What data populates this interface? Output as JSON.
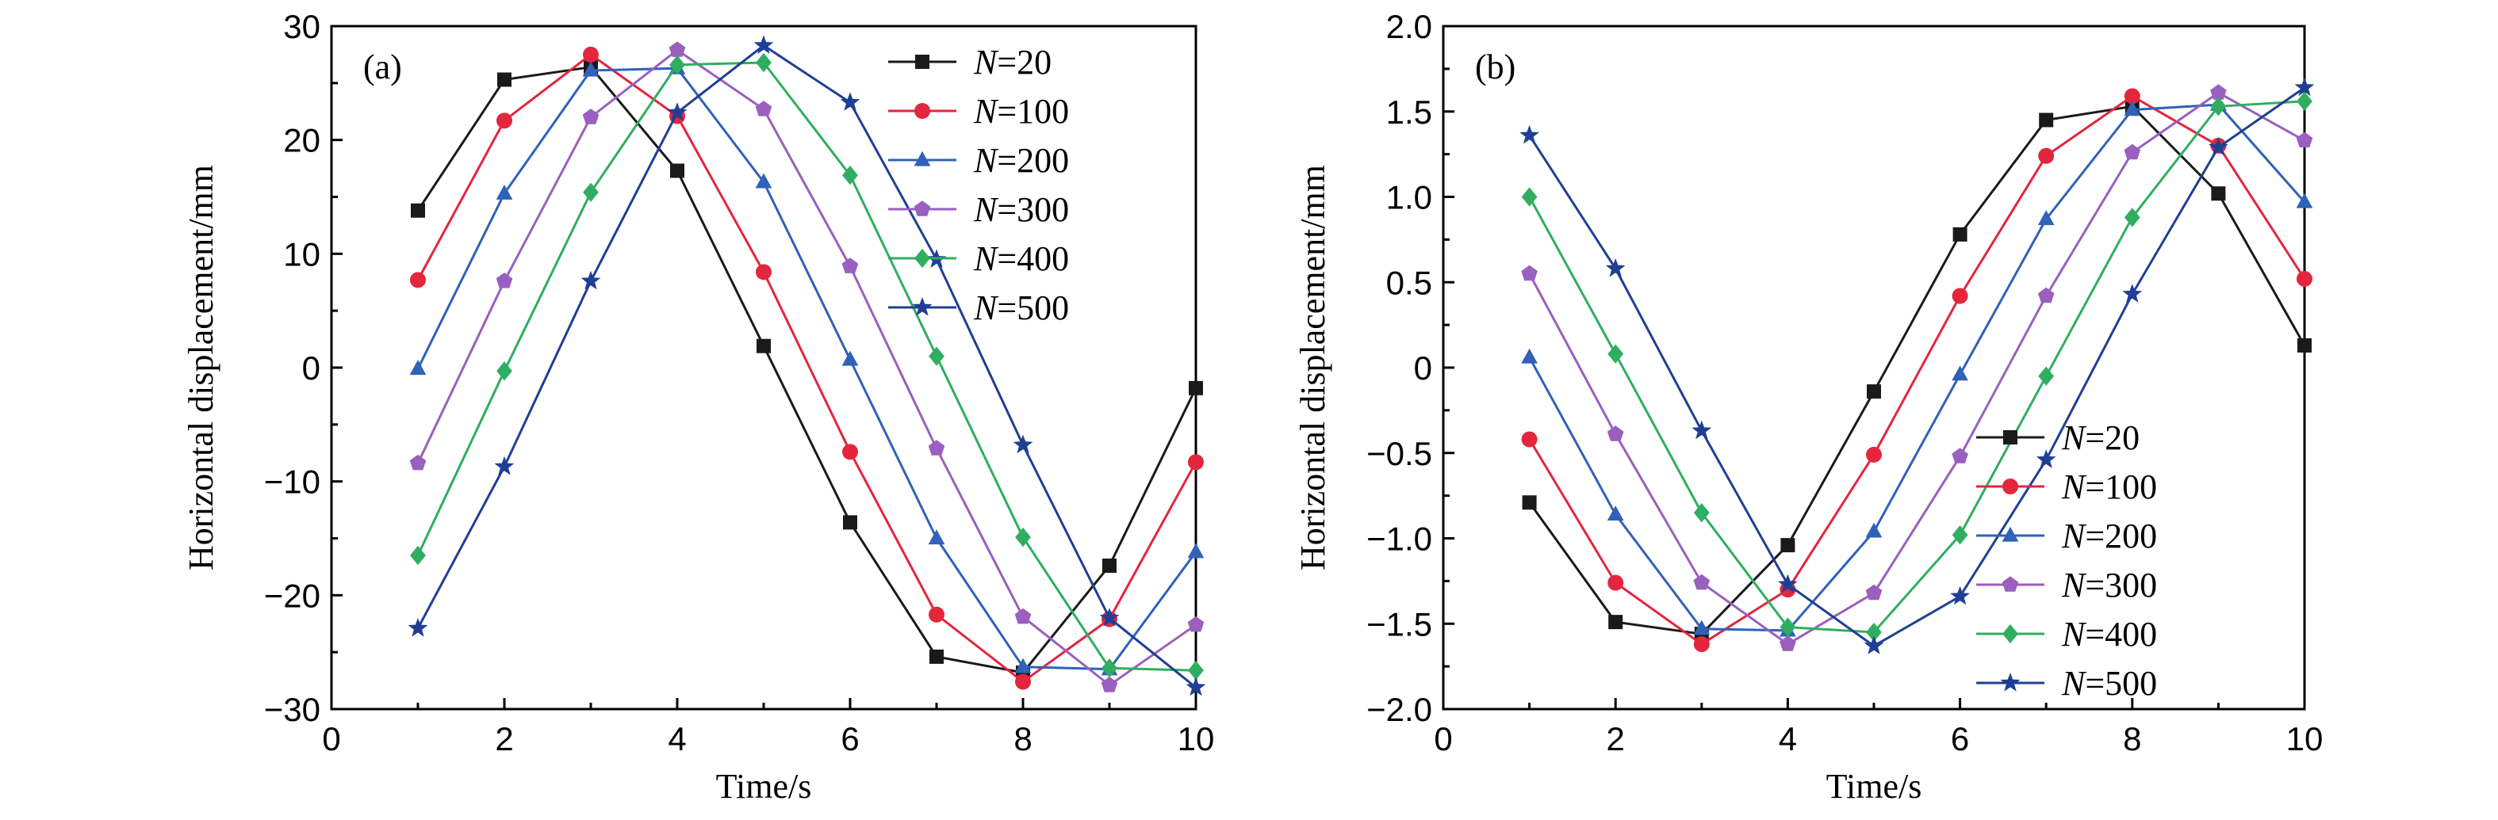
{
  "colors": {
    "N=20": "#1a1a1a",
    "N=100": "#e3263d",
    "N=200": "#2f62b8",
    "N=300": "#9a5fbf",
    "N=400": "#2fae60",
    "N=500": "#1f3f94"
  },
  "chart_data": [
    {
      "type": "line",
      "panel_label": "(a)",
      "xlabel": "Time/s",
      "ylabel": "Horizontal displacement/mm",
      "xlim": [
        0,
        10
      ],
      "ylim": [
        -30,
        30
      ],
      "xticks": [
        0,
        2,
        4,
        6,
        8,
        10
      ],
      "yticks": [
        -30,
        -20,
        -10,
        0,
        10,
        20,
        30
      ],
      "ytick_labels": [
        "−30",
        "−20",
        "−10",
        "0",
        "10",
        "20",
        "30"
      ],
      "legend_position": "top-right",
      "x": [
        1,
        2,
        3,
        4,
        5,
        6,
        7,
        8,
        9,
        10
      ],
      "series": [
        {
          "name": "N=20",
          "var": "N",
          "value": "20",
          "marker": "square",
          "values": [
            13.8,
            25.3,
            26.4,
            17.3,
            1.9,
            -13.6,
            -25.4,
            -26.8,
            -17.4,
            -1.8
          ]
        },
        {
          "name": "N=100",
          "var": "N",
          "value": "100",
          "marker": "circle",
          "values": [
            7.7,
            21.7,
            27.5,
            22.1,
            8.4,
            -7.4,
            -21.7,
            -27.6,
            -22.1,
            -8.3
          ]
        },
        {
          "name": "N=200",
          "var": "N",
          "value": "200",
          "marker": "triangle",
          "values": [
            -0.1,
            15.3,
            26.1,
            26.3,
            16.3,
            0.7,
            -15.0,
            -26.3,
            -26.5,
            -16.2
          ]
        },
        {
          "name": "N=300",
          "var": "N",
          "value": "300",
          "marker": "pentagon",
          "values": [
            -8.4,
            7.6,
            22.0,
            27.9,
            22.7,
            8.9,
            -7.1,
            -21.9,
            -27.9,
            -22.6
          ]
        },
        {
          "name": "N=400",
          "var": "N",
          "value": "400",
          "marker": "diamond",
          "values": [
            -16.5,
            -0.3,
            15.4,
            26.6,
            26.8,
            16.9,
            1.0,
            -14.9,
            -26.4,
            -26.6
          ]
        },
        {
          "name": "N=500",
          "var": "N",
          "value": "500",
          "marker": "star",
          "values": [
            -22.9,
            -8.7,
            7.6,
            22.4,
            28.3,
            23.3,
            9.5,
            -6.8,
            -22.0,
            -28.1
          ]
        }
      ]
    },
    {
      "type": "line",
      "panel_label": "(b)",
      "xlabel": "Time/s",
      "ylabel": "Horizontal displacement/mm",
      "xlim": [
        0,
        10
      ],
      "ylim": [
        -2.0,
        2.0
      ],
      "xticks": [
        0,
        2,
        4,
        6,
        8,
        10
      ],
      "yticks": [
        -2.0,
        -1.5,
        -1.0,
        -0.5,
        0,
        0.5,
        1.0,
        1.5,
        2.0
      ],
      "ytick_labels": [
        "−2.0",
        "−1.5",
        "−1.0",
        "−0.5",
        "0",
        "0.5",
        "1.0",
        "1.5",
        "2.0"
      ],
      "legend_position": "bottom-right",
      "x": [
        1,
        2,
        3,
        4,
        5,
        6,
        7,
        8,
        9,
        10
      ],
      "series": [
        {
          "name": "N=20",
          "var": "N",
          "value": "20",
          "marker": "square",
          "values": [
            -0.79,
            -1.49,
            -1.56,
            -1.04,
            -0.14,
            0.78,
            1.45,
            1.53,
            1.02,
            0.13
          ]
        },
        {
          "name": "N=100",
          "var": "N",
          "value": "100",
          "marker": "circle",
          "values": [
            -0.42,
            -1.26,
            -1.62,
            -1.3,
            -0.51,
            0.42,
            1.24,
            1.59,
            1.3,
            0.52
          ]
        },
        {
          "name": "N=200",
          "var": "N",
          "value": "200",
          "marker": "triangle",
          "values": [
            0.06,
            -0.86,
            -1.53,
            -1.54,
            -0.96,
            -0.04,
            0.87,
            1.51,
            1.54,
            0.97
          ]
        },
        {
          "name": "N=300",
          "var": "N",
          "value": "300",
          "marker": "pentagon",
          "values": [
            0.55,
            -0.39,
            -1.26,
            -1.62,
            -1.32,
            -0.52,
            0.42,
            1.26,
            1.61,
            1.33
          ]
        },
        {
          "name": "N=400",
          "var": "N",
          "value": "400",
          "marker": "diamond",
          "values": [
            1.0,
            0.08,
            -0.85,
            -1.52,
            -1.55,
            -0.98,
            -0.05,
            0.88,
            1.53,
            1.56
          ]
        },
        {
          "name": "N=500",
          "var": "N",
          "value": "500",
          "marker": "star",
          "values": [
            1.36,
            0.58,
            -0.37,
            -1.27,
            -1.63,
            -1.34,
            -0.54,
            0.43,
            1.29,
            1.64
          ]
        }
      ]
    }
  ]
}
